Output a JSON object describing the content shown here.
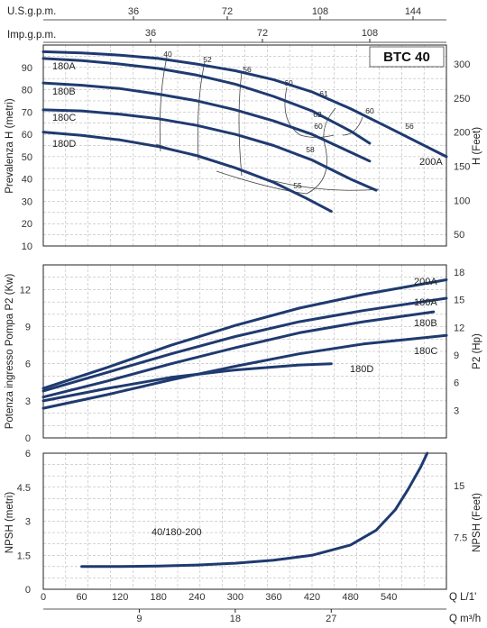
{
  "chart_data": [
    {
      "type": "line",
      "title": "BTC 40",
      "ylabel": "Prevalenza H (metri)",
      "y2label": "H (Feet)",
      "xaxis_top_labels": {
        "usgpm": "U.S.g.p.m.",
        "impgpm": "Imp.g.p.m."
      },
      "usgpm_ticks": [
        "36",
        "72",
        "108",
        "144"
      ],
      "impgpm_ticks": [
        "36",
        "72",
        "108"
      ],
      "xlim": [
        0,
        630
      ],
      "ylim": [
        10,
        100
      ],
      "yticks": [
        "10",
        "20",
        "30",
        "40",
        "50",
        "60",
        "70",
        "80",
        "90"
      ],
      "y2ticks": [
        "50",
        "100",
        "150",
        "200",
        "250",
        "300"
      ],
      "series": [
        {
          "name": "200A",
          "x": [
            0,
            60,
            120,
            180,
            240,
            300,
            360,
            420,
            480,
            540,
            630
          ],
          "y": [
            97,
            96.5,
            95.5,
            94,
            91.5,
            88.5,
            84.5,
            79,
            71.5,
            63,
            50
          ]
        },
        {
          "name": "180A",
          "x": [
            0,
            60,
            120,
            180,
            240,
            300,
            360,
            420,
            480,
            510
          ],
          "y": [
            94,
            93,
            91.5,
            89.5,
            86.5,
            82.5,
            77,
            70.5,
            61.5,
            56
          ]
        },
        {
          "name": "180B",
          "x": [
            0,
            60,
            120,
            180,
            240,
            300,
            360,
            420,
            480,
            510
          ],
          "y": [
            83,
            82,
            80.5,
            78,
            75,
            71,
            66,
            60,
            52,
            48
          ]
        },
        {
          "name": "180C",
          "x": [
            0,
            60,
            120,
            180,
            240,
            300,
            360,
            420,
            480,
            520
          ],
          "y": [
            71,
            70.5,
            69,
            67,
            64,
            60,
            55,
            48.5,
            40,
            35
          ]
        },
        {
          "name": "180D",
          "x": [
            0,
            60,
            120,
            180,
            240,
            300,
            360,
            410,
            450
          ],
          "y": [
            61,
            59.5,
            57.5,
            54.5,
            50.5,
            45,
            38.5,
            31.5,
            25.5
          ]
        }
      ],
      "efficiency_labels": [
        "40",
        "52",
        "56",
        "60",
        "61",
        "62",
        "60",
        "60",
        "56",
        "58",
        "55"
      ]
    },
    {
      "type": "line",
      "ylabel": "Potenza ingresso Pompa P2 (Kw)",
      "y2label": "P2 (Hp)",
      "xlim": [
        0,
        630
      ],
      "ylim": [
        0,
        14
      ],
      "yticks": [
        "0",
        "3",
        "6",
        "9",
        "12"
      ],
      "y2ticks": [
        "3",
        "6",
        "9",
        "12",
        "15",
        "18"
      ],
      "series": [
        {
          "name": "200A",
          "x": [
            0,
            100,
            200,
            300,
            400,
            500,
            630
          ],
          "y": [
            4.0,
            5.7,
            7.5,
            9.1,
            10.5,
            11.6,
            12.8
          ]
        },
        {
          "name": "180A",
          "x": [
            0,
            100,
            200,
            300,
            400,
            500,
            630
          ],
          "y": [
            3.8,
            5.3,
            6.8,
            8.2,
            9.4,
            10.3,
            11.3
          ]
        },
        {
          "name": "180B",
          "x": [
            0,
            100,
            200,
            300,
            400,
            500,
            610
          ],
          "y": [
            3.3,
            4.6,
            6.0,
            7.3,
            8.5,
            9.4,
            10.2
          ]
        },
        {
          "name": "180C",
          "x": [
            0,
            100,
            200,
            300,
            400,
            500,
            630
          ],
          "y": [
            2.4,
            3.5,
            4.7,
            5.8,
            6.8,
            7.6,
            8.3
          ]
        },
        {
          "name": "180D",
          "x": [
            0,
            100,
            200,
            300,
            400,
            450
          ],
          "y": [
            3.0,
            4.0,
            4.9,
            5.5,
            5.9,
            6.0
          ]
        }
      ]
    },
    {
      "type": "line",
      "ylabel": "NPSH (metri)",
      "y2label": "NPSH (Feet)",
      "xlabel": "Q L/1'",
      "x2label": "Q m³/h",
      "xlim": [
        0,
        630
      ],
      "ylim": [
        0,
        6
      ],
      "xticks": [
        "0",
        "60",
        "120",
        "180",
        "240",
        "300",
        "360",
        "420",
        "480",
        "540"
      ],
      "x2ticks": [
        "9",
        "18",
        "27"
      ],
      "yticks": [
        "0",
        "1.5",
        "3",
        "4.5",
        "6"
      ],
      "y2ticks": [
        "7.5",
        "15"
      ],
      "series": [
        {
          "name": "40/180-200",
          "x": [
            60,
            120,
            180,
            240,
            300,
            360,
            420,
            480,
            520,
            550,
            570,
            590,
            600
          ],
          "y": [
            1.0,
            1.0,
            1.02,
            1.07,
            1.15,
            1.28,
            1.5,
            1.95,
            2.6,
            3.5,
            4.4,
            5.4,
            6.0
          ]
        }
      ]
    }
  ]
}
